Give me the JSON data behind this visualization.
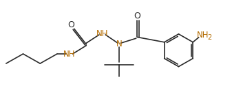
{
  "bg_color": "#ffffff",
  "line_color": "#2a2a2a",
  "text_color_black": "#2a2a2a",
  "text_color_orange": "#b36b00",
  "figsize": [
    3.53,
    1.51
  ],
  "dpi": 100,
  "xlim": [
    0,
    10
  ],
  "ylim": [
    0,
    4.3
  ]
}
